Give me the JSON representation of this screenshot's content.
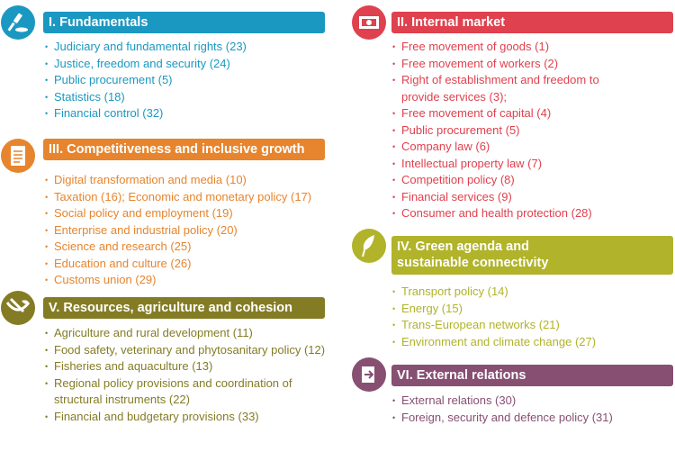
{
  "sections": [
    {
      "title": "I. Fundamentals",
      "color": "#1b98c1",
      "icon": "gavel-icon",
      "items": [
        "Judiciary and fundamental rights (23)",
        "Justice, freedom and security (24)",
        "Public procurement (5)",
        "Statistics (18)",
        "Financial control (32)"
      ]
    },
    {
      "title": "III. Competitiveness and inclusive growth",
      "color": "#e6852e",
      "icon": "document-icon",
      "items": [
        "Digital transformation and media (10)",
        "Taxation (16); Economic and monetary policy (17)",
        "Social policy and employment (19)",
        "Enterprise and industrial policy (20)",
        "Science and research (25)",
        "Education and culture (26)",
        "Customs union (29)"
      ]
    },
    {
      "title": "V. Resources, agriculture and cohesion",
      "color": "#847c25",
      "icon": "agriculture-icon",
      "items": [
        "Agriculture and rural development (11)",
        "Food safety, veterinary and phytosanitary policy (12)",
        "Fisheries and aquaculture (13)",
        "Regional policy provisions and coordination of structural instruments (22)",
        "Financial and budgetary provisions (33)"
      ]
    },
    {
      "title": "II. Internal market",
      "color": "#df414e",
      "icon": "banknote-icon",
      "items": [
        "Free movement of goods (1)",
        "Free movement of workers (2)",
        "Right of establishment and freedom to provide services (3);",
        "Free movement of capital (4)",
        "Public procurement (5)",
        "Company law (6)",
        "Intellectual property law (7)",
        "Competition policy (8)",
        "Financial services (9)",
        "Consumer and health protection (28)"
      ]
    },
    {
      "title": "IV. Green agenda and sustainable connectivity",
      "color": "#b1b32a",
      "icon": "leaf-icon",
      "items": [
        "Transport policy (14)",
        "Energy (15)",
        "Trans-European networks (21)",
        "Environment and climate change (27)"
      ]
    },
    {
      "title": "VI. External relations",
      "color": "#874f72",
      "icon": "exit-arrow-icon",
      "items": [
        "External relations (30)",
        "Foreign, security and defence policy (31)"
      ]
    }
  ]
}
